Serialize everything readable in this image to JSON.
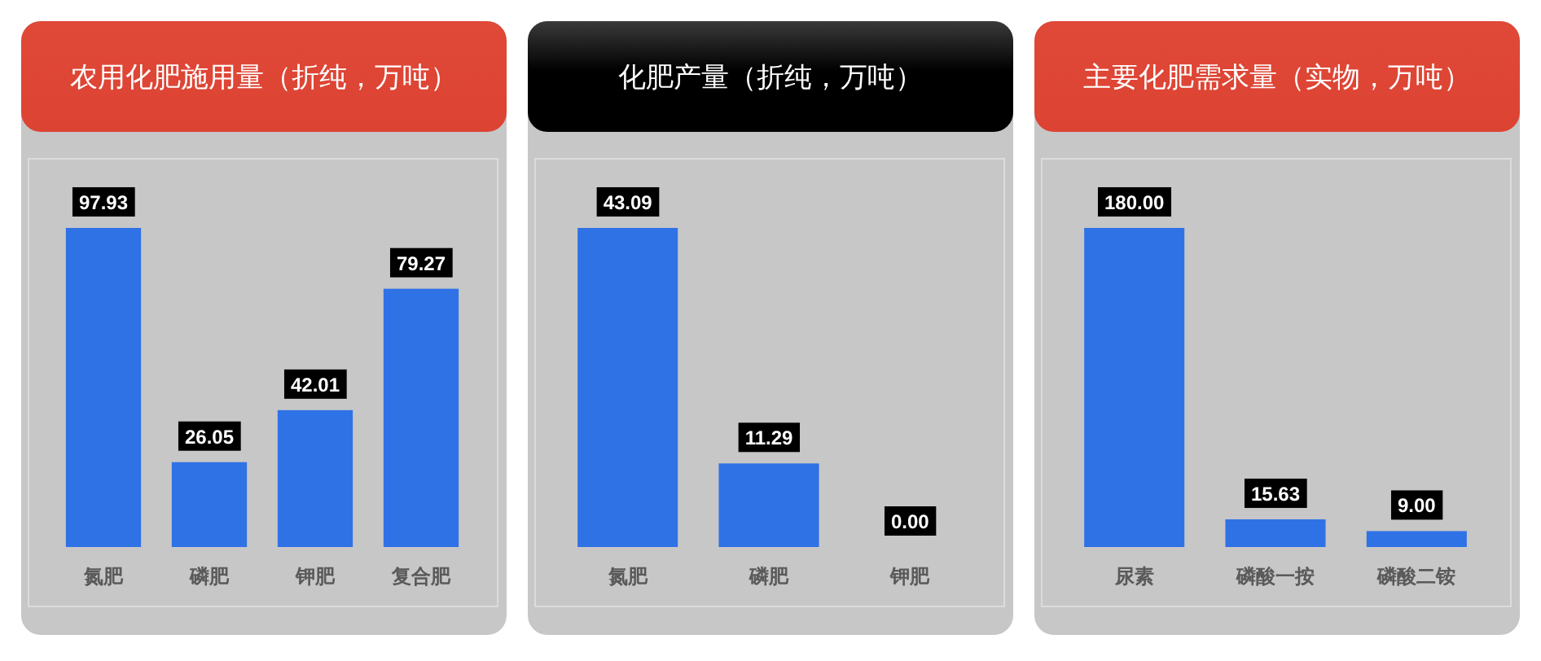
{
  "chart_data": [
    {
      "type": "bar",
      "title": "农用化肥施用量（折纯，万吨）",
      "categories": [
        "氮肥",
        "磷肥",
        "钾肥",
        "复合肥"
      ],
      "values": [
        97.93,
        26.05,
        42.01,
        79.27
      ],
      "value_labels": [
        "97.93",
        "26.05",
        "42.01",
        "79.27"
      ],
      "color": "#2f72e6"
    },
    {
      "type": "bar",
      "title": "化肥产量（折纯，万吨）",
      "categories": [
        "氮肥",
        "磷肥",
        "钾肥"
      ],
      "values": [
        43.09,
        11.29,
        0
      ],
      "value_labels": [
        "43.09",
        "11.29",
        "0.00"
      ],
      "color": "#2f72e6"
    },
    {
      "type": "bar",
      "title": "主要化肥需求量（实物，万吨）",
      "categories": [
        "尿素",
        "磷酸一按",
        "磷酸二铵"
      ],
      "values": [
        180,
        15.63,
        9
      ],
      "value_labels": [
        "180.00",
        "15.63",
        "9.00"
      ],
      "color": "#2f72e6"
    }
  ]
}
